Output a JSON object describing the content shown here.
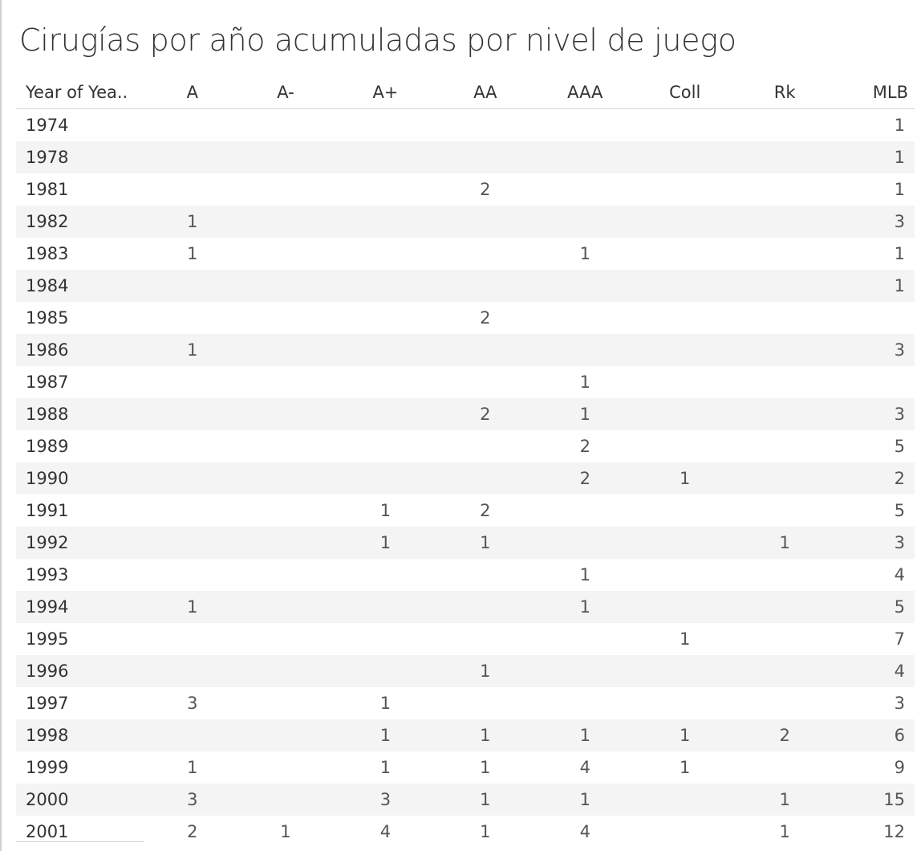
{
  "chart_data": {
    "type": "table",
    "title": "Cirugías por año acumuladas por nivel de juego",
    "row_header": "Year of Yea..",
    "columns": [
      "A",
      "A-",
      "A+",
      "AA",
      "AAA",
      "Coll",
      "Rk",
      "MLB"
    ],
    "rows": [
      {
        "year": "1974",
        "values": [
          "",
          "",
          "",
          "",
          "",
          "",
          "",
          "1"
        ]
      },
      {
        "year": "1978",
        "values": [
          "",
          "",
          "",
          "",
          "",
          "",
          "",
          "1"
        ]
      },
      {
        "year": "1981",
        "values": [
          "",
          "",
          "",
          "2",
          "",
          "",
          "",
          "1"
        ]
      },
      {
        "year": "1982",
        "values": [
          "1",
          "",
          "",
          "",
          "",
          "",
          "",
          "3"
        ]
      },
      {
        "year": "1983",
        "values": [
          "1",
          "",
          "",
          "",
          "1",
          "",
          "",
          "1"
        ]
      },
      {
        "year": "1984",
        "values": [
          "",
          "",
          "",
          "",
          "",
          "",
          "",
          "1"
        ]
      },
      {
        "year": "1985",
        "values": [
          "",
          "",
          "",
          "2",
          "",
          "",
          "",
          ""
        ]
      },
      {
        "year": "1986",
        "values": [
          "1",
          "",
          "",
          "",
          "",
          "",
          "",
          "3"
        ]
      },
      {
        "year": "1987",
        "values": [
          "",
          "",
          "",
          "",
          "1",
          "",
          "",
          ""
        ]
      },
      {
        "year": "1988",
        "values": [
          "",
          "",
          "",
          "2",
          "1",
          "",
          "",
          "3"
        ]
      },
      {
        "year": "1989",
        "values": [
          "",
          "",
          "",
          "",
          "2",
          "",
          "",
          "5"
        ]
      },
      {
        "year": "1990",
        "values": [
          "",
          "",
          "",
          "",
          "2",
          "1",
          "",
          "2"
        ]
      },
      {
        "year": "1991",
        "values": [
          "",
          "",
          "1",
          "2",
          "",
          "",
          "",
          "5"
        ]
      },
      {
        "year": "1992",
        "values": [
          "",
          "",
          "1",
          "1",
          "",
          "",
          "1",
          "3"
        ]
      },
      {
        "year": "1993",
        "values": [
          "",
          "",
          "",
          "",
          "1",
          "",
          "",
          "4"
        ]
      },
      {
        "year": "1994",
        "values": [
          "1",
          "",
          "",
          "",
          "1",
          "",
          "",
          "5"
        ]
      },
      {
        "year": "1995",
        "values": [
          "",
          "",
          "",
          "",
          "",
          "1",
          "",
          "7"
        ]
      },
      {
        "year": "1996",
        "values": [
          "",
          "",
          "",
          "1",
          "",
          "",
          "",
          "4"
        ]
      },
      {
        "year": "1997",
        "values": [
          "3",
          "",
          "1",
          "",
          "",
          "",
          "",
          "3"
        ]
      },
      {
        "year": "1998",
        "values": [
          "",
          "",
          "1",
          "1",
          "1",
          "1",
          "2",
          "6"
        ]
      },
      {
        "year": "1999",
        "values": [
          "1",
          "",
          "1",
          "1",
          "4",
          "1",
          "",
          "9"
        ]
      },
      {
        "year": "2000",
        "values": [
          "3",
          "",
          "3",
          "1",
          "1",
          "",
          "1",
          "15"
        ]
      },
      {
        "year": "2001",
        "values": [
          "2",
          "1",
          "4",
          "1",
          "4",
          "",
          "1",
          "12"
        ]
      }
    ]
  }
}
